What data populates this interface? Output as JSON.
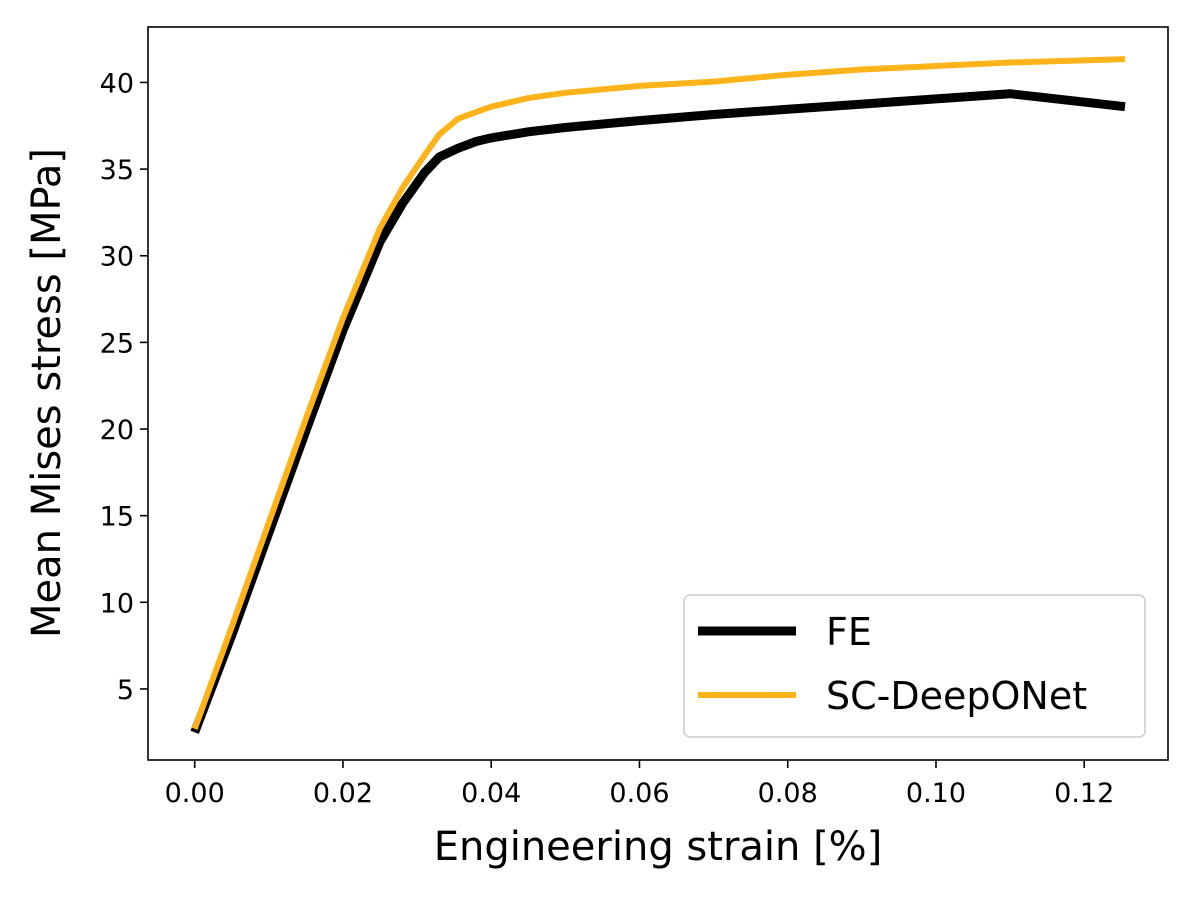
{
  "chart_data": {
    "type": "line",
    "title": "",
    "xlabel": "Engineering strain [%]",
    "ylabel": "Mean Mises stress [MPa]",
    "xlim": [
      -0.0063,
      0.1313
    ],
    "ylim": [
      0.9,
      43.2
    ],
    "xticks": [
      0.0,
      0.02,
      0.04,
      0.06,
      0.08,
      0.1,
      0.12
    ],
    "xtick_labels": [
      "0.00",
      "0.02",
      "0.04",
      "0.06",
      "0.08",
      "0.10",
      "0.12"
    ],
    "yticks": [
      5,
      10,
      15,
      20,
      25,
      30,
      35,
      40
    ],
    "ytick_labels": [
      "5",
      "10",
      "15",
      "20",
      "25",
      "30",
      "35",
      "40"
    ],
    "grid": false,
    "legend_position": "bottom-right",
    "series": [
      {
        "name": "FE",
        "color": "#000000",
        "x": [
          0.0,
          0.005,
          0.01,
          0.015,
          0.02,
          0.025,
          0.028,
          0.031,
          0.033,
          0.0355,
          0.038,
          0.04,
          0.045,
          0.05,
          0.06,
          0.07,
          0.08,
          0.09,
          0.1,
          0.11,
          0.1255
        ],
        "y": [
          2.5,
          8.1,
          14.0,
          19.9,
          25.7,
          30.8,
          33.0,
          34.8,
          35.7,
          36.2,
          36.6,
          36.8,
          37.15,
          37.4,
          37.8,
          38.15,
          38.45,
          38.75,
          39.05,
          39.35,
          38.6
        ]
      },
      {
        "name": "SC-DeepONet",
        "color": "#FFB31A",
        "x": [
          0.0,
          0.005,
          0.01,
          0.015,
          0.02,
          0.025,
          0.028,
          0.031,
          0.033,
          0.0355,
          0.038,
          0.04,
          0.045,
          0.05,
          0.06,
          0.07,
          0.08,
          0.09,
          0.1,
          0.11,
          0.1255
        ],
        "y": [
          2.7,
          8.6,
          14.6,
          20.6,
          26.4,
          31.6,
          33.9,
          35.8,
          37.0,
          37.9,
          38.3,
          38.6,
          39.1,
          39.4,
          39.8,
          40.05,
          40.45,
          40.75,
          40.95,
          41.15,
          41.35
        ]
      }
    ]
  }
}
